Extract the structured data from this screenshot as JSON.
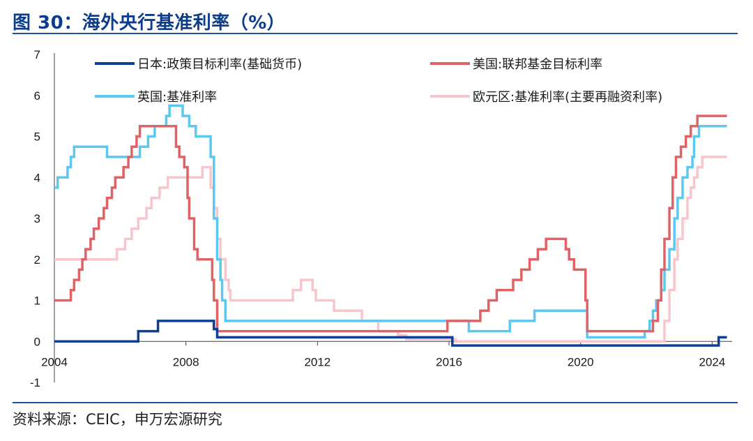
{
  "header": {
    "title": "图 30：海外央行基准利率（%）"
  },
  "footer": {
    "source": "资料来源：CEIC，申万宏源研究"
  },
  "chart_data": {
    "type": "line",
    "title": "图 30：海外央行基准利率（%）",
    "xlabel": "",
    "ylabel": "",
    "xlim": [
      2004.0,
      2024.5
    ],
    "ylim": [
      -1,
      7
    ],
    "x_ticks": [
      "2004",
      "2008",
      "2012",
      "2016",
      "2020",
      "2024"
    ],
    "y_ticks": [
      "-1",
      "0",
      "1",
      "2",
      "3",
      "4",
      "5",
      "6",
      "7"
    ],
    "grid": false,
    "legend_position": "top",
    "series": [
      {
        "name": "日本:政策目标利率(基础货币)",
        "color": "#0d3f97",
        "points": [
          [
            2004.0,
            0
          ],
          [
            2006.55,
            0
          ],
          [
            2006.55,
            0.25
          ],
          [
            2007.15,
            0.25
          ],
          [
            2007.15,
            0.5
          ],
          [
            2008.85,
            0.5
          ],
          [
            2008.85,
            0.3
          ],
          [
            2008.95,
            0.3
          ],
          [
            2008.95,
            0.1
          ],
          [
            2016.1,
            0.1
          ],
          [
            2016.1,
            -0.1
          ],
          [
            2024.2,
            -0.1
          ],
          [
            2024.2,
            0.1
          ],
          [
            2024.45,
            0.1
          ]
        ]
      },
      {
        "name": "美国:联邦基金目标利率",
        "color": "#e06265",
        "points": [
          [
            2004.0,
            1
          ],
          [
            2004.5,
            1
          ],
          [
            2004.5,
            1.25
          ],
          [
            2004.6,
            1.25
          ],
          [
            2004.6,
            1.5
          ],
          [
            2004.75,
            1.5
          ],
          [
            2004.75,
            1.75
          ],
          [
            2004.85,
            1.75
          ],
          [
            2004.85,
            2
          ],
          [
            2004.95,
            2
          ],
          [
            2004.95,
            2.25
          ],
          [
            2005.1,
            2.25
          ],
          [
            2005.1,
            2.5
          ],
          [
            2005.2,
            2.5
          ],
          [
            2005.2,
            2.75
          ],
          [
            2005.35,
            2.75
          ],
          [
            2005.35,
            3
          ],
          [
            2005.5,
            3
          ],
          [
            2005.5,
            3.25
          ],
          [
            2005.6,
            3.25
          ],
          [
            2005.6,
            3.5
          ],
          [
            2005.75,
            3.5
          ],
          [
            2005.75,
            3.75
          ],
          [
            2005.85,
            3.75
          ],
          [
            2005.85,
            4
          ],
          [
            2006.1,
            4
          ],
          [
            2006.1,
            4.25
          ],
          [
            2006.25,
            4.25
          ],
          [
            2006.25,
            4.5
          ],
          [
            2006.35,
            4.5
          ],
          [
            2006.35,
            4.75
          ],
          [
            2006.5,
            4.75
          ],
          [
            2006.5,
            5
          ],
          [
            2006.6,
            5
          ],
          [
            2006.6,
            5.25
          ],
          [
            2007.7,
            5.25
          ],
          [
            2007.7,
            4.75
          ],
          [
            2007.8,
            4.75
          ],
          [
            2007.8,
            4.5
          ],
          [
            2007.95,
            4.5
          ],
          [
            2007.95,
            4.25
          ],
          [
            2008.05,
            4.25
          ],
          [
            2008.05,
            3.5
          ],
          [
            2008.1,
            3.5
          ],
          [
            2008.1,
            3
          ],
          [
            2008.25,
            3
          ],
          [
            2008.25,
            2.25
          ],
          [
            2008.35,
            2.25
          ],
          [
            2008.35,
            2
          ],
          [
            2008.8,
            2
          ],
          [
            2008.8,
            1.5
          ],
          [
            2008.85,
            1.5
          ],
          [
            2008.85,
            1
          ],
          [
            2008.95,
            1
          ],
          [
            2008.95,
            0.25
          ],
          [
            2015.95,
            0.25
          ],
          [
            2015.95,
            0.5
          ],
          [
            2016.95,
            0.5
          ],
          [
            2016.95,
            0.75
          ],
          [
            2017.2,
            0.75
          ],
          [
            2017.2,
            1
          ],
          [
            2017.45,
            1
          ],
          [
            2017.45,
            1.25
          ],
          [
            2017.95,
            1.25
          ],
          [
            2017.95,
            1.5
          ],
          [
            2018.2,
            1.5
          ],
          [
            2018.2,
            1.75
          ],
          [
            2018.45,
            1.75
          ],
          [
            2018.45,
            2
          ],
          [
            2018.7,
            2
          ],
          [
            2018.7,
            2.25
          ],
          [
            2018.95,
            2.25
          ],
          [
            2018.95,
            2.5
          ],
          [
            2019.55,
            2.5
          ],
          [
            2019.55,
            2.25
          ],
          [
            2019.65,
            2.25
          ],
          [
            2019.65,
            2
          ],
          [
            2019.8,
            2
          ],
          [
            2019.8,
            1.75
          ],
          [
            2020.15,
            1.75
          ],
          [
            2020.15,
            1
          ],
          [
            2020.2,
            1
          ],
          [
            2020.2,
            0.25
          ],
          [
            2022.2,
            0.25
          ],
          [
            2022.2,
            0.5
          ],
          [
            2022.35,
            0.5
          ],
          [
            2022.35,
            1
          ],
          [
            2022.45,
            1
          ],
          [
            2022.45,
            1.75
          ],
          [
            2022.55,
            1.75
          ],
          [
            2022.55,
            2.5
          ],
          [
            2022.7,
            2.5
          ],
          [
            2022.7,
            3.25
          ],
          [
            2022.8,
            3.25
          ],
          [
            2022.8,
            4
          ],
          [
            2022.9,
            4
          ],
          [
            2022.9,
            4.5
          ],
          [
            2023.05,
            4.5
          ],
          [
            2023.05,
            4.75
          ],
          [
            2023.2,
            4.75
          ],
          [
            2023.2,
            5
          ],
          [
            2023.35,
            5
          ],
          [
            2023.35,
            5.25
          ],
          [
            2023.55,
            5.25
          ],
          [
            2023.55,
            5.5
          ],
          [
            2024.45,
            5.5
          ]
        ]
      },
      {
        "name": "英国:基准利率",
        "color": "#5ac8f0",
        "points": [
          [
            2004.0,
            3.75
          ],
          [
            2004.1,
            3.75
          ],
          [
            2004.1,
            4
          ],
          [
            2004.4,
            4
          ],
          [
            2004.4,
            4.25
          ],
          [
            2004.5,
            4.25
          ],
          [
            2004.5,
            4.5
          ],
          [
            2004.6,
            4.5
          ],
          [
            2004.6,
            4.75
          ],
          [
            2005.6,
            4.75
          ],
          [
            2005.6,
            4.5
          ],
          [
            2006.6,
            4.5
          ],
          [
            2006.6,
            4.75
          ],
          [
            2006.85,
            4.75
          ],
          [
            2006.85,
            5
          ],
          [
            2007.05,
            5
          ],
          [
            2007.05,
            5.25
          ],
          [
            2007.4,
            5.25
          ],
          [
            2007.4,
            5.5
          ],
          [
            2007.5,
            5.5
          ],
          [
            2007.5,
            5.75
          ],
          [
            2007.9,
            5.75
          ],
          [
            2007.9,
            5.5
          ],
          [
            2008.1,
            5.5
          ],
          [
            2008.1,
            5.25
          ],
          [
            2008.3,
            5.25
          ],
          [
            2008.3,
            5
          ],
          [
            2008.75,
            5
          ],
          [
            2008.75,
            4.5
          ],
          [
            2008.85,
            4.5
          ],
          [
            2008.85,
            3
          ],
          [
            2008.95,
            3
          ],
          [
            2008.95,
            2
          ],
          [
            2009.05,
            2
          ],
          [
            2009.05,
            1.5
          ],
          [
            2009.1,
            1.5
          ],
          [
            2009.1,
            1
          ],
          [
            2009.2,
            1
          ],
          [
            2009.2,
            0.5
          ],
          [
            2016.6,
            0.5
          ],
          [
            2016.6,
            0.25
          ],
          [
            2017.85,
            0.25
          ],
          [
            2017.85,
            0.5
          ],
          [
            2018.6,
            0.5
          ],
          [
            2018.6,
            0.75
          ],
          [
            2020.2,
            0.75
          ],
          [
            2020.2,
            0.1
          ],
          [
            2021.95,
            0.1
          ],
          [
            2021.95,
            0.25
          ],
          [
            2022.1,
            0.25
          ],
          [
            2022.1,
            0.5
          ],
          [
            2022.2,
            0.5
          ],
          [
            2022.2,
            0.75
          ],
          [
            2022.3,
            0.75
          ],
          [
            2022.3,
            1
          ],
          [
            2022.45,
            1
          ],
          [
            2022.45,
            1.25
          ],
          [
            2022.55,
            1.25
          ],
          [
            2022.55,
            1.75
          ],
          [
            2022.7,
            1.75
          ],
          [
            2022.7,
            2.25
          ],
          [
            2022.85,
            2.25
          ],
          [
            2022.85,
            3
          ],
          [
            2022.95,
            3
          ],
          [
            2022.95,
            3.5
          ],
          [
            2023.1,
            3.5
          ],
          [
            2023.1,
            4
          ],
          [
            2023.25,
            4
          ],
          [
            2023.25,
            4.25
          ],
          [
            2023.4,
            4.25
          ],
          [
            2023.4,
            4.5
          ],
          [
            2023.45,
            4.5
          ],
          [
            2023.45,
            5
          ],
          [
            2023.6,
            5
          ],
          [
            2023.6,
            5.25
          ],
          [
            2024.45,
            5.25
          ]
        ]
      },
      {
        "name": "欧元区:基准利率(主要再融资利率)",
        "color": "#f7c6cc",
        "points": [
          [
            2004.0,
            2
          ],
          [
            2005.9,
            2
          ],
          [
            2005.9,
            2.25
          ],
          [
            2006.15,
            2.25
          ],
          [
            2006.15,
            2.5
          ],
          [
            2006.35,
            2.5
          ],
          [
            2006.35,
            2.75
          ],
          [
            2006.55,
            2.75
          ],
          [
            2006.55,
            3
          ],
          [
            2006.8,
            3
          ],
          [
            2006.8,
            3.25
          ],
          [
            2006.95,
            3.25
          ],
          [
            2006.95,
            3.5
          ],
          [
            2007.2,
            3.5
          ],
          [
            2007.2,
            3.75
          ],
          [
            2007.45,
            3.75
          ],
          [
            2007.45,
            4
          ],
          [
            2008.5,
            4
          ],
          [
            2008.5,
            4.25
          ],
          [
            2008.75,
            4.25
          ],
          [
            2008.75,
            3.75
          ],
          [
            2008.85,
            3.75
          ],
          [
            2008.85,
            3.25
          ],
          [
            2008.95,
            3.25
          ],
          [
            2008.95,
            2.5
          ],
          [
            2009.05,
            2.5
          ],
          [
            2009.05,
            2
          ],
          [
            2009.2,
            2
          ],
          [
            2009.2,
            1.5
          ],
          [
            2009.3,
            1.5
          ],
          [
            2009.3,
            1.25
          ],
          [
            2009.35,
            1.25
          ],
          [
            2009.35,
            1
          ],
          [
            2011.25,
            1
          ],
          [
            2011.25,
            1.25
          ],
          [
            2011.5,
            1.25
          ],
          [
            2011.5,
            1.5
          ],
          [
            2011.85,
            1.5
          ],
          [
            2011.85,
            1.25
          ],
          [
            2011.95,
            1.25
          ],
          [
            2011.95,
            1
          ],
          [
            2012.5,
            1
          ],
          [
            2012.5,
            0.75
          ],
          [
            2013.35,
            0.75
          ],
          [
            2013.35,
            0.5
          ],
          [
            2013.85,
            0.5
          ],
          [
            2013.85,
            0.25
          ],
          [
            2014.45,
            0.25
          ],
          [
            2014.45,
            0.15
          ],
          [
            2014.7,
            0.15
          ],
          [
            2014.7,
            0.05
          ],
          [
            2016.2,
            0.05
          ],
          [
            2016.2,
            0
          ],
          [
            2022.55,
            0
          ],
          [
            2022.55,
            0.5
          ],
          [
            2022.7,
            0.5
          ],
          [
            2022.7,
            1.25
          ],
          [
            2022.85,
            1.25
          ],
          [
            2022.85,
            2
          ],
          [
            2022.95,
            2
          ],
          [
            2022.95,
            2.5
          ],
          [
            2023.1,
            2.5
          ],
          [
            2023.1,
            3
          ],
          [
            2023.25,
            3
          ],
          [
            2023.25,
            3.5
          ],
          [
            2023.35,
            3.5
          ],
          [
            2023.35,
            3.75
          ],
          [
            2023.45,
            3.75
          ],
          [
            2023.45,
            4
          ],
          [
            2023.55,
            4
          ],
          [
            2023.55,
            4.25
          ],
          [
            2023.7,
            4.25
          ],
          [
            2023.7,
            4.5
          ],
          [
            2024.45,
            4.5
          ]
        ]
      }
    ]
  }
}
